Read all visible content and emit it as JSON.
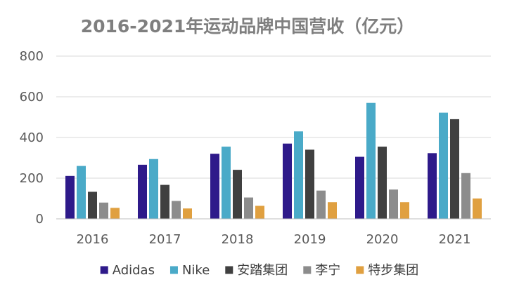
{
  "chart_data": {
    "type": "bar",
    "title": "2016-2021年运动品牌中国营收（亿元）",
    "xlabel": "",
    "ylabel": "",
    "categories": [
      "2016",
      "2017",
      "2018",
      "2019",
      "2020",
      "2021"
    ],
    "ylim": [
      0,
      800
    ],
    "yticks": [
      0,
      200,
      400,
      600,
      800
    ],
    "grid": true,
    "legend_position": "bottom",
    "series": [
      {
        "name": "Adidas",
        "color": "#2e1a8a",
        "values": [
          211,
          266,
          320,
          370,
          305,
          323
        ]
      },
      {
        "name": "Nike",
        "color": "#4aaac8",
        "values": [
          260,
          294,
          355,
          430,
          570,
          522
        ]
      },
      {
        "name": "安踏集团",
        "color": "#404040",
        "values": [
          133,
          167,
          241,
          340,
          355,
          490
        ]
      },
      {
        "name": "李宁",
        "color": "#8c8c8c",
        "values": [
          80,
          88,
          105,
          139,
          144,
          225
        ]
      },
      {
        "name": "特步集团",
        "color": "#e0a040",
        "values": [
          54,
          51,
          64,
          82,
          82,
          100
        ]
      }
    ]
  }
}
